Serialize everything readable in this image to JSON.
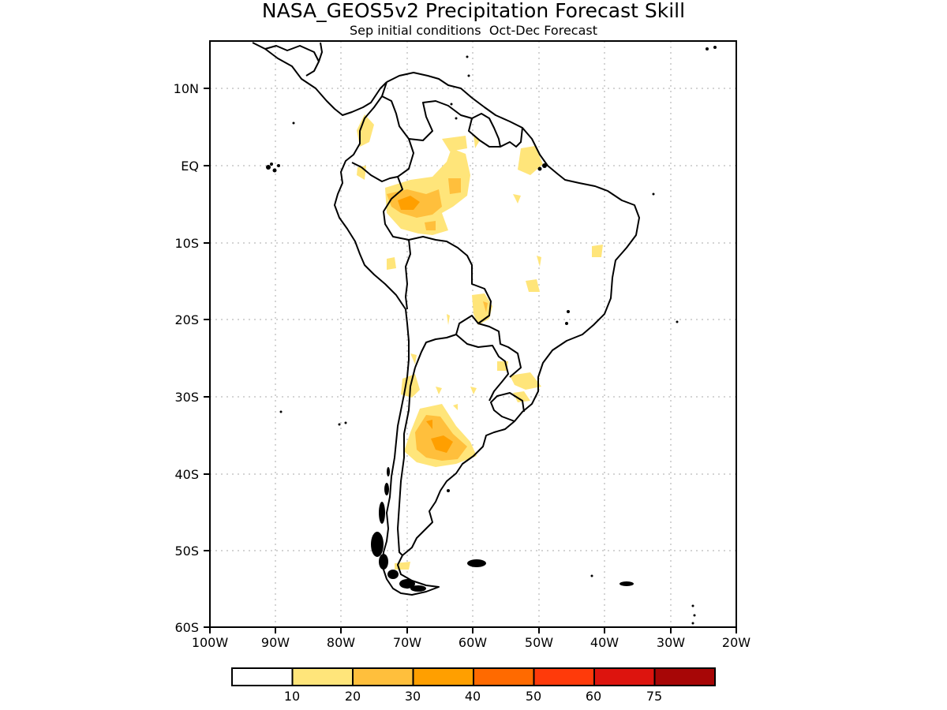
{
  "title": "NASA_GEOS5v2 Precipitation Forecast Skill",
  "subtitle": "Sep initial conditions  Oct-Dec Forecast",
  "lat_labels": [
    "10N",
    "EQ",
    "10S",
    "20S",
    "30S",
    "40S",
    "50S",
    "60S"
  ],
  "lon_labels": [
    "100W",
    "90W",
    "80W",
    "70W",
    "60W",
    "50W",
    "40W",
    "30W",
    "20W"
  ],
  "legend": {
    "ticks": [
      "10",
      "20",
      "30",
      "40",
      "50",
      "60",
      "75"
    ],
    "colors": [
      "#ffffff",
      "#ffe57a",
      "#ffbf3c",
      "#ff9f00",
      "#ff6a00",
      "#ff3a0a",
      "#dd140e",
      "#a70606"
    ]
  },
  "colors": {
    "land_outline": "#000000",
    "grid": "#a0a0a0"
  }
}
